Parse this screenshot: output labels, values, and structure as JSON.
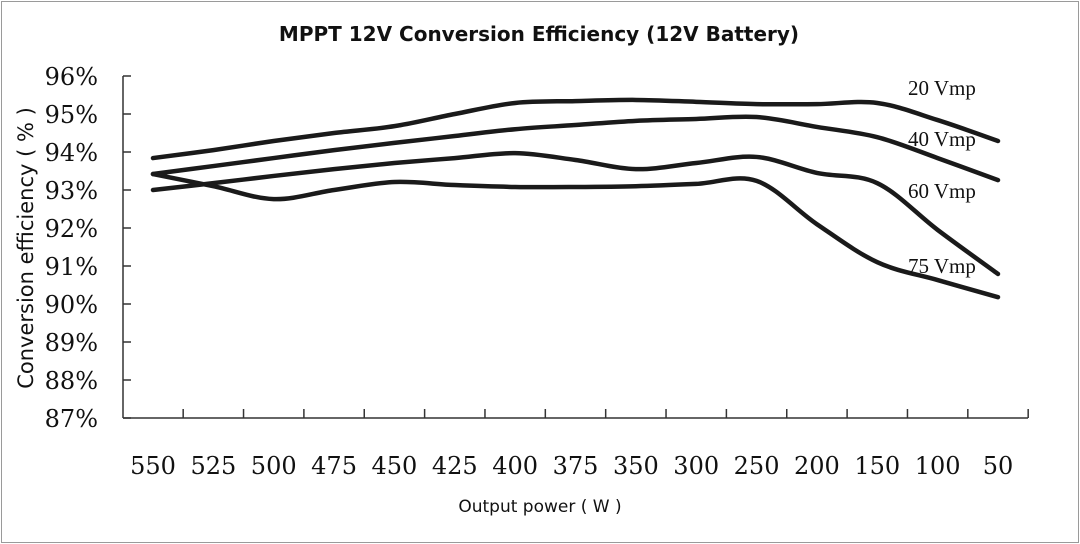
{
  "chart_data": {
    "type": "line",
    "title": "MPPT 12V Conversion Efficiency (12V Battery)",
    "xlabel": "Output power ( W )",
    "ylabel": "Conversion efficiency ( % )",
    "categories": [
      "550",
      "525",
      "500",
      "475",
      "450",
      "425",
      "400",
      "375",
      "350",
      "300",
      "250",
      "200",
      "150",
      "100",
      "50"
    ],
    "yticks": [
      "87%",
      "88%",
      "89%",
      "90%",
      "91%",
      "92%",
      "93%",
      "94%",
      "95%",
      "96%"
    ],
    "ylim": [
      87,
      96
    ],
    "grid": false,
    "legend": "inline labels at right end of lines",
    "line_color": "#1a1a1a",
    "series": [
      {
        "name": "20 Vmp",
        "values": [
          93.84,
          94.05,
          94.29,
          94.5,
          94.68,
          95.0,
          95.29,
          95.34,
          95.37,
          95.32,
          95.26,
          95.26,
          95.29,
          94.84,
          94.29
        ]
      },
      {
        "name": "40 Vmp",
        "values": [
          93.42,
          93.63,
          93.84,
          94.05,
          94.24,
          94.42,
          94.6,
          94.71,
          94.82,
          94.87,
          94.92,
          94.66,
          94.39,
          93.84,
          93.26
        ]
      },
      {
        "name": "60 Vmp",
        "values": [
          93.0,
          93.18,
          93.37,
          93.55,
          93.71,
          93.84,
          93.97,
          93.79,
          93.55,
          93.71,
          93.87,
          93.45,
          93.18,
          91.95,
          90.79
        ]
      },
      {
        "name": "75 Vmp",
        "values": [
          93.42,
          93.1,
          92.76,
          93.0,
          93.21,
          93.13,
          93.08,
          93.08,
          93.1,
          93.16,
          93.24,
          92.1,
          91.1,
          90.63,
          90.18
        ]
      }
    ]
  }
}
